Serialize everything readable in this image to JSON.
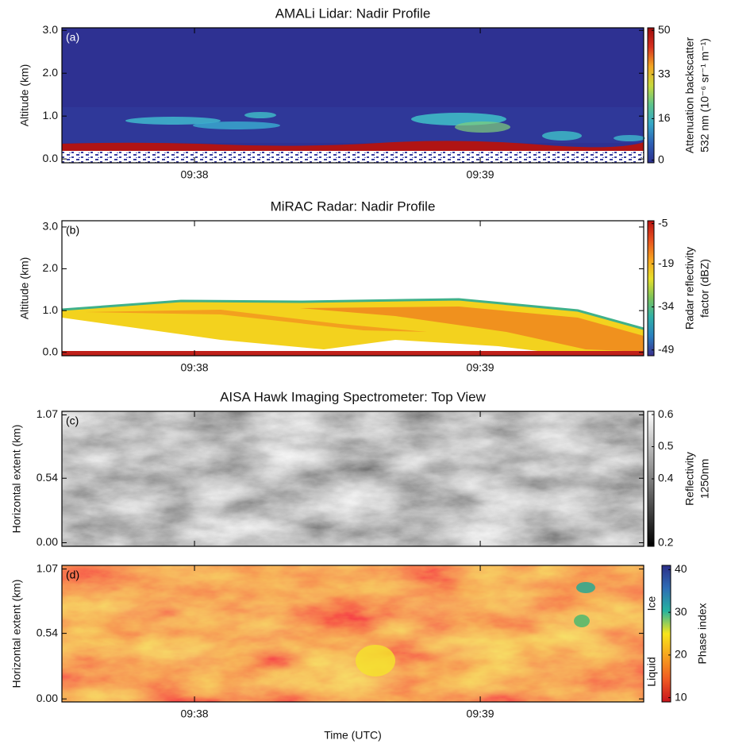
{
  "chart_data": [
    {
      "type": "heatmap",
      "title": "AMALi Lidar: Nadir Profile",
      "panel_label": "(a)",
      "panel_label_color": "#ffffff",
      "ylabel": "Altitude (km)",
      "ylim": [
        -0.09,
        3.06
      ],
      "yticks": [
        {
          "value": 0,
          "label": "0.0"
        },
        {
          "value": 1,
          "label": "1.0"
        },
        {
          "value": 2,
          "label": "2.0"
        },
        {
          "value": 3,
          "label": "3.0"
        }
      ],
      "xlim": [
        577.536,
        579.572
      ],
      "xticks": [
        {
          "value": 578,
          "label": "09:38"
        },
        {
          "value": 579,
          "label": "09:39"
        }
      ],
      "colorbar": {
        "label": [
          "Attenuation backscatter",
          "532 nm (10⁻⁶ sr⁻¹ m⁻¹)"
        ],
        "lim": [
          -1,
          51
        ],
        "ticks": [
          0,
          16,
          33,
          50
        ],
        "colors": [
          "#2b2f8f",
          "#2e5fb5",
          "#34a6c8",
          "#5cc48c",
          "#c8d93c",
          "#f2a522",
          "#d7301f",
          "#9e0b0b"
        ]
      }
    },
    {
      "type": "heatmap",
      "title": "MiRAC Radar: Nadir Profile",
      "panel_label": "(b)",
      "panel_label_color": "#000000",
      "ylabel": "Altitude (km)",
      "ylim": [
        -0.08,
        3.15
      ],
      "yticks": [
        {
          "value": 0,
          "label": "0.0"
        },
        {
          "value": 1,
          "label": "1.0"
        },
        {
          "value": 2,
          "label": "2.0"
        },
        {
          "value": 3,
          "label": "3.0"
        }
      ],
      "xlim": [
        577.536,
        579.572
      ],
      "xticks": [
        {
          "value": 578,
          "label": "09:38"
        },
        {
          "value": 579,
          "label": "09:39"
        }
      ],
      "colorbar": {
        "label": [
          "Radar reflectivity",
          "factor (dBZ)"
        ],
        "lim": [
          -51,
          -4
        ],
        "ticks": [
          -49,
          -34,
          -19,
          -5
        ],
        "colors": [
          "#3a2f8c",
          "#2a7fc0",
          "#2fb0a8",
          "#7cc35a",
          "#e8e02a",
          "#f7a21f",
          "#e8501e",
          "#b81111"
        ]
      }
    },
    {
      "type": "heatmap",
      "title": "AISA Hawk Imaging Spectrometer: Top View",
      "panel_label": "(c)",
      "panel_label_color": "#000000",
      "ylabel": "Horizontal extent (km)",
      "ylim": [
        -0.03,
        1.1
      ],
      "yticks": [
        {
          "value": 0,
          "label": "0.00"
        },
        0.54,
        1.07
      ],
      "xlim": [
        577.536,
        579.572
      ],
      "xticks": [
        578,
        579
      ],
      "xticklabels": false,
      "colorbar": {
        "label": [
          "Reflectivity",
          "1250nm"
        ],
        "lim": [
          0.19,
          0.61
        ],
        "ticks": [
          0.2,
          0.4,
          0.5,
          0.6
        ],
        "colors": [
          "#000000",
          "#ffffff"
        ]
      }
    },
    {
      "type": "heatmap",
      "panel_label": "(d)",
      "panel_label_color": "#000000",
      "ylabel": "Horizontal extent (km)",
      "ylim": [
        -0.025,
        1.1
      ],
      "yticks": [
        {
          "value": 0,
          "label": "0.00"
        },
        0.54,
        1.07
      ],
      "xlim": [
        577.536,
        579.572
      ],
      "xticks": [
        {
          "value": 578,
          "label": "09:38"
        },
        {
          "value": 579,
          "label": "09:39"
        }
      ],
      "xlabel": "Time (UTC)",
      "colorbar": {
        "label": [
          "Phase index"
        ],
        "lim": [
          9,
          41
        ],
        "ticks": [
          10,
          20,
          30,
          40
        ],
        "ice_label": "Ice",
        "liquid_label": "Liquid",
        "colors": [
          "#c8141c",
          "#f05a22",
          "#f7a11f",
          "#f7e51b",
          "#26b3a0",
          "#2e6db5",
          "#2c2f88"
        ]
      }
    }
  ]
}
